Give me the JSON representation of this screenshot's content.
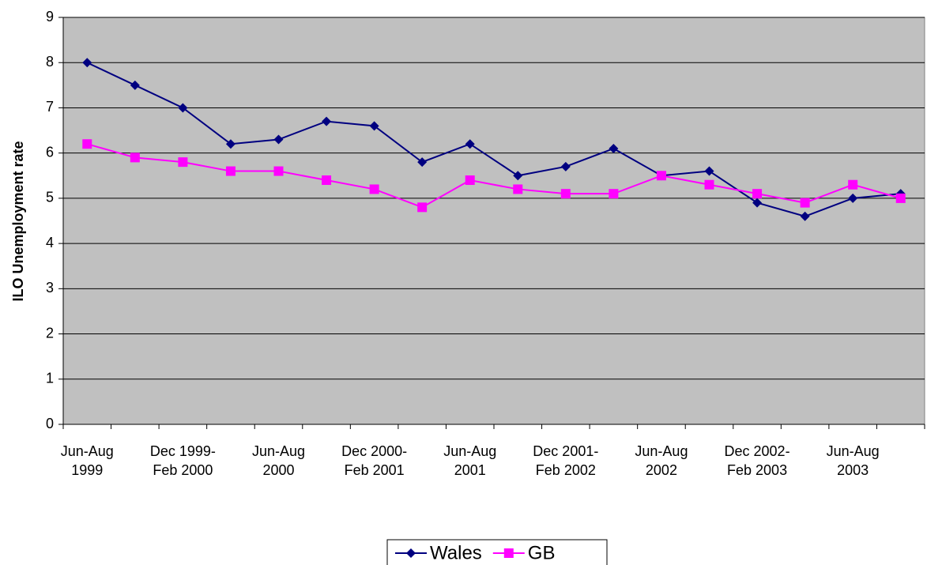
{
  "chart_data": {
    "type": "line",
    "y_label": "ILO Unemployment rate",
    "categories": [
      "Jun-Aug 1999",
      null,
      "Dec 1999-Feb 2000",
      null,
      "Jun-Aug 2000",
      null,
      "Dec 2000-Feb 2001",
      null,
      "Jun-Aug 2001",
      null,
      "Dec 2001-Feb 2002",
      null,
      "Jun-Aug 2002",
      null,
      "Dec 2002-Feb 2003",
      null,
      "Jun-Aug 2003",
      null
    ],
    "series": [
      {
        "name": "Wales",
        "color": "#000080",
        "marker": "diamond",
        "values": [
          8,
          7.5,
          7,
          6.2,
          6.3,
          6.7,
          6.6,
          5.8,
          6.2,
          5.5,
          5.7,
          6.1,
          5.5,
          5.6,
          4.9,
          4.6,
          5.0,
          5.1
        ]
      },
      {
        "name": "GB",
        "color": "#ff00ff",
        "marker": "square",
        "values": [
          6.2,
          5.9,
          5.8,
          5.6,
          5.6,
          5.4,
          5.2,
          4.8,
          5.4,
          5.2,
          5.1,
          5.1,
          5.5,
          5.3,
          5.1,
          4.9,
          5.3,
          5.0
        ]
      }
    ],
    "ylim": [
      0,
      9
    ],
    "yticks": [
      0,
      1,
      2,
      3,
      4,
      5,
      6,
      7,
      8,
      9
    ],
    "grid": true,
    "legend": "bottom"
  }
}
